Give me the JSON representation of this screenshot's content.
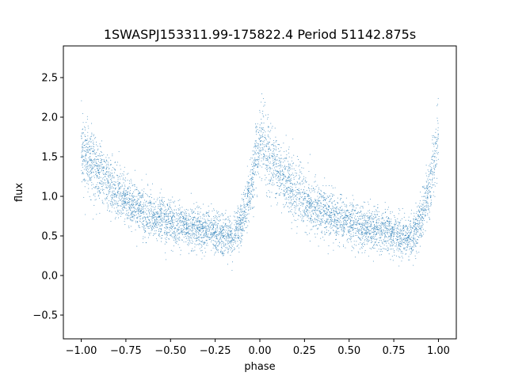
{
  "chart_data": {
    "type": "scatter",
    "title": "1SWASPJ153311.99-175822.4 Period 51142.875s",
    "xlabel": "phase",
    "ylabel": "flux",
    "xlim": [
      -1.1,
      1.1
    ],
    "ylim": [
      -0.8,
      2.9
    ],
    "xticks": [
      -1.0,
      -0.75,
      -0.5,
      -0.25,
      0.0,
      0.25,
      0.5,
      0.75,
      1.0
    ],
    "xtick_labels": [
      "−1.00",
      "−0.75",
      "−0.50",
      "−0.25",
      "0.00",
      "0.25",
      "0.50",
      "0.75",
      "1.00"
    ],
    "yticks": [
      -0.5,
      0.0,
      0.5,
      1.0,
      1.5,
      2.0,
      2.5
    ],
    "ytick_labels": [
      "−0.5",
      "0.0",
      "0.5",
      "1.0",
      "1.5",
      "2.0",
      "2.5"
    ],
    "grid": false,
    "marker_color": "#1f77b4",
    "series": [
      {
        "description_of_shape": "folded light curve",
        "trend": {
          "x": [
            -1.0,
            -0.9,
            -0.8,
            -0.7,
            -0.6,
            -0.5,
            -0.4,
            -0.3,
            -0.2,
            -0.15,
            -0.1,
            -0.05,
            0.0,
            0.1,
            0.2,
            0.3,
            0.4,
            0.5,
            0.6,
            0.7,
            0.8,
            0.85,
            0.9,
            0.95,
            1.0
          ],
          "y": [
            1.6,
            1.3,
            1.05,
            0.88,
            0.75,
            0.66,
            0.6,
            0.56,
            0.5,
            0.45,
            0.7,
            1.1,
            1.75,
            1.3,
            1.05,
            0.88,
            0.75,
            0.66,
            0.6,
            0.56,
            0.5,
            0.45,
            0.7,
            1.1,
            1.75
          ]
        },
        "scatter_spread": 0.18,
        "approx_point_count": 6000
      }
    ]
  }
}
